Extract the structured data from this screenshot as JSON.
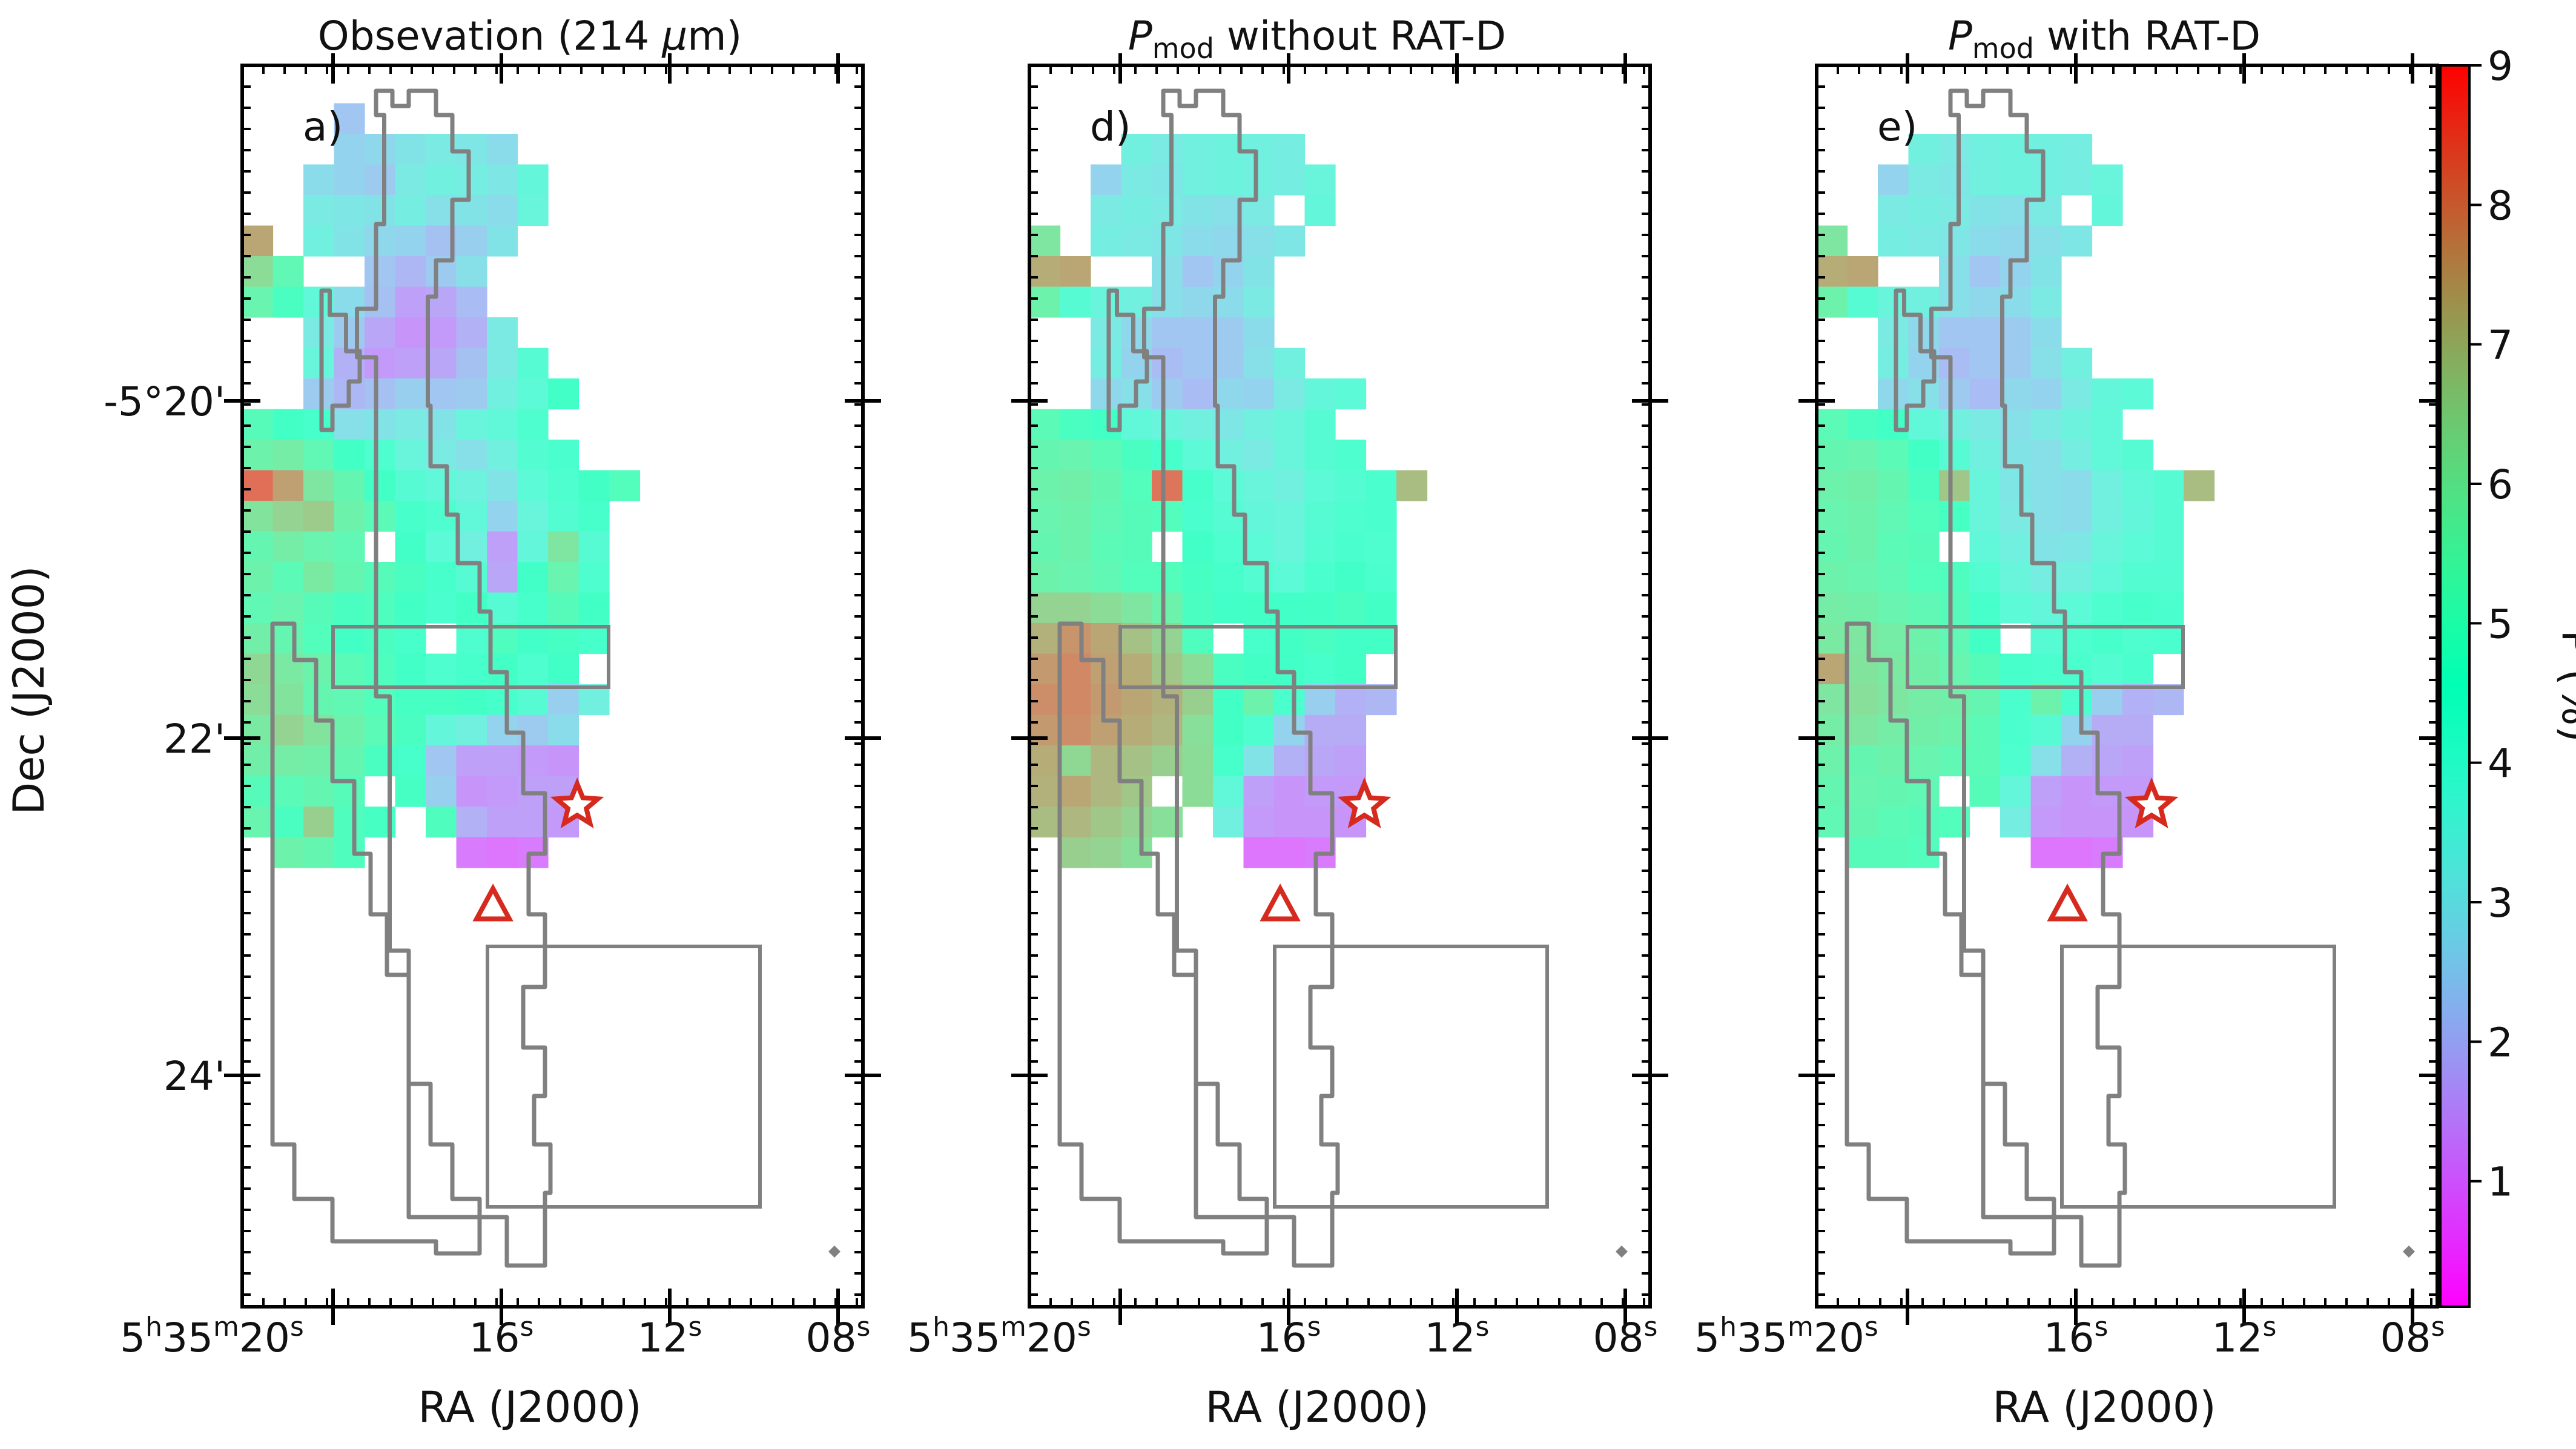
{
  "figure": {
    "ylabel": "Dec (J2000)",
    "xlabel": "RA (J2000)",
    "yticks": [
      {
        "label": "-5°20'",
        "dec_arcmin": -20
      },
      {
        "label": "22'",
        "dec_arcmin": -22
      },
      {
        "label": "24'",
        "dec_arcmin": -24
      }
    ],
    "xticks": [
      {
        "h": "5",
        "m": "35",
        "s": "20",
        "ra_s": 20
      },
      {
        "s": "16",
        "ra_s": 16
      },
      {
        "s": "12",
        "ra_s": 12
      },
      {
        "s": "08",
        "ra_s": 8
      }
    ]
  },
  "chart_data": [
    {
      "type": "heatmap",
      "panel_label": "a)",
      "title_text": "Obsevation (214 ",
      "title_mu": "μ",
      "title_unit": "m)",
      "markers": {
        "star": {
          "ra_s": 14.2,
          "dec_arcmin": -22.4
        },
        "triangle": {
          "ra_s": 16.2,
          "dec_arcmin": -23.0
        }
      },
      "grid": [
        [
          null,
          null,
          null,
          null,
          null,
          null,
          null,
          null,
          null,
          null,
          null,
          null,
          null
        ],
        [
          null,
          null,
          null,
          2.3,
          null,
          null,
          null,
          null,
          null,
          null,
          null,
          null,
          null
        ],
        [
          null,
          null,
          null,
          2.6,
          2.7,
          3.0,
          3.2,
          3.1,
          2.8,
          null,
          null,
          null,
          null
        ],
        [
          null,
          null,
          2.8,
          2.6,
          2.4,
          3.2,
          3.4,
          3.3,
          3.1,
          3.7,
          null,
          null,
          null
        ],
        [
          null,
          null,
          3.2,
          3.1,
          3.0,
          3.3,
          2.9,
          3.0,
          2.8,
          3.6,
          null,
          null,
          null
        ],
        [
          7.4,
          null,
          3.4,
          3.0,
          2.7,
          2.6,
          2.2,
          2.5,
          3.0,
          null,
          null,
          null,
          null
        ],
        [
          6.3,
          5.3,
          null,
          null,
          2.3,
          2.0,
          2.4,
          2.9,
          null,
          null,
          null,
          null,
          null
        ],
        [
          5.5,
          4.8,
          3.8,
          2.8,
          2.2,
          1.6,
          1.7,
          2.1,
          null,
          null,
          null,
          null,
          null
        ],
        [
          null,
          null,
          3.2,
          2.4,
          1.7,
          1.4,
          1.5,
          1.9,
          3.2,
          null,
          null,
          null,
          null
        ],
        [
          null,
          null,
          3.6,
          1.9,
          1.5,
          1.6,
          1.7,
          2.2,
          3.2,
          4.0,
          null,
          null,
          null
        ],
        [
          null,
          null,
          2.4,
          2.0,
          2.2,
          2.5,
          2.3,
          2.4,
          3.4,
          3.9,
          4.5,
          null,
          null
        ],
        [
          5.1,
          4.6,
          4.4,
          2.9,
          3.0,
          3.2,
          3.0,
          3.6,
          3.8,
          4.2,
          null,
          null,
          null
        ],
        [
          5.6,
          5.8,
          5.3,
          4.6,
          4.2,
          3.6,
          3.2,
          2.9,
          3.4,
          4.1,
          4.3,
          null,
          null
        ],
        [
          8.3,
          7.5,
          6.0,
          5.4,
          4.6,
          4.0,
          3.8,
          3.5,
          3.0,
          3.9,
          4.2,
          4.6,
          5.0
        ],
        [
          6.1,
          6.5,
          6.7,
          5.6,
          5.2,
          4.4,
          4.2,
          3.8,
          2.6,
          3.6,
          4.1,
          4.4,
          null
        ],
        [
          5.4,
          5.8,
          5.5,
          5.3,
          null,
          4.5,
          3.9,
          3.4,
          1.6,
          3.7,
          6.0,
          4.0,
          null
        ],
        [
          5.6,
          5.2,
          5.9,
          5.4,
          5.1,
          4.8,
          4.4,
          4.0,
          1.7,
          4.5,
          5.5,
          4.2,
          null
        ],
        [
          5.3,
          5.5,
          5.1,
          4.8,
          4.9,
          4.6,
          4.3,
          4.6,
          4.0,
          4.4,
          5.1,
          4.6,
          null
        ],
        [
          5.7,
          5.4,
          5.0,
          4.6,
          4.8,
          4.4,
          null,
          4.2,
          4.9,
          4.5,
          4.7,
          4.4,
          null
        ],
        [
          6.4,
          5.9,
          5.6,
          5.2,
          4.9,
          4.5,
          4.2,
          4.4,
          4.6,
          4.2,
          4.5,
          null,
          null
        ],
        [
          6.3,
          6.1,
          5.4,
          5.3,
          5.0,
          4.7,
          4.7,
          4.6,
          4.4,
          4.0,
          2.5,
          3.4,
          null
        ],
        [
          5.9,
          6.5,
          6.1,
          5.6,
          5.2,
          4.8,
          3.7,
          3.4,
          2.6,
          2.4,
          2.8,
          null,
          null
        ],
        [
          5.7,
          5.8,
          5.7,
          5.4,
          4.8,
          4.4,
          2.3,
          1.6,
          1.6,
          1.5,
          1.4,
          null,
          null
        ],
        [
          5.1,
          5.2,
          5.4,
          5.1,
          null,
          4.7,
          2.5,
          1.4,
          1.5,
          1.6,
          1.6,
          null,
          null
        ],
        [
          5.5,
          4.8,
          6.6,
          4.9,
          4.7,
          null,
          4.9,
          1.9,
          1.6,
          1.6,
          1.5,
          null,
          null
        ],
        [
          null,
          5.6,
          5.4,
          4.9,
          null,
          null,
          null,
          1.0,
          0.9,
          1.0,
          null,
          null,
          null
        ],
        [
          null,
          null,
          null,
          null,
          null,
          null,
          null,
          null,
          null,
          null,
          null,
          null,
          null
        ]
      ]
    },
    {
      "type": "heatmap",
      "panel_label": "d)",
      "title_main": "P",
      "title_sub": "mod",
      "title_rest": " without RAT-D",
      "markers": {
        "star": {
          "ra_s": 14.2,
          "dec_arcmin": -22.4
        },
        "triangle": {
          "ra_s": 16.2,
          "dec_arcmin": -23.0
        }
      },
      "grid": [
        [
          null,
          null,
          null,
          null,
          null,
          null,
          null,
          null,
          null,
          null,
          null,
          null,
          null
        ],
        [
          null,
          null,
          null,
          null,
          null,
          null,
          null,
          null,
          null,
          null,
          null,
          null,
          null
        ],
        [
          null,
          null,
          null,
          3.4,
          3.2,
          3.4,
          3.5,
          3.4,
          3.3,
          null,
          null,
          null,
          null
        ],
        [
          null,
          null,
          2.6,
          3.2,
          3.1,
          3.4,
          3.5,
          3.4,
          3.3,
          3.6,
          null,
          null,
          null
        ],
        [
          null,
          null,
          3.2,
          3.3,
          3.2,
          3.0,
          2.9,
          3.2,
          null,
          3.7,
          null,
          null,
          null
        ],
        [
          6.0,
          null,
          3.3,
          3.2,
          3.1,
          2.8,
          2.7,
          2.9,
          3.1,
          null,
          null,
          null,
          null
        ],
        [
          7.3,
          7.4,
          null,
          null,
          2.9,
          2.3,
          2.6,
          3.0,
          null,
          null,
          null,
          null,
          null
        ],
        [
          5.6,
          4.0,
          3.6,
          3.4,
          2.9,
          2.7,
          2.8,
          3.2,
          null,
          null,
          null,
          null,
          null
        ],
        [
          null,
          null,
          3.2,
          2.7,
          2.3,
          2.3,
          2.4,
          2.8,
          null,
          null,
          null,
          null,
          null
        ],
        [
          null,
          null,
          3.3,
          2.6,
          2.1,
          2.3,
          2.4,
          2.9,
          3.4,
          null,
          null,
          null,
          null
        ],
        [
          null,
          null,
          2.7,
          2.9,
          2.4,
          2.1,
          2.7,
          2.6,
          3.2,
          3.7,
          3.9,
          null,
          null
        ],
        [
          5.2,
          4.8,
          4.6,
          3.8,
          3.6,
          3.4,
          3.1,
          3.4,
          3.6,
          4.0,
          null,
          null,
          null
        ],
        [
          5.4,
          5.5,
          5.2,
          4.8,
          4.4,
          3.9,
          3.4,
          3.2,
          3.6,
          4.0,
          4.2,
          null,
          null
        ],
        [
          5.6,
          5.7,
          5.4,
          5.0,
          8.2,
          4.4,
          3.9,
          3.6,
          3.4,
          3.9,
          4.1,
          4.3,
          7.0
        ],
        [
          5.5,
          5.6,
          5.3,
          5.1,
          5.0,
          4.3,
          4.0,
          3.7,
          3.6,
          4.0,
          4.2,
          4.3,
          null
        ],
        [
          5.4,
          5.6,
          5.2,
          5.1,
          null,
          4.5,
          4.2,
          3.9,
          3.6,
          4.1,
          4.3,
          4.2,
          null
        ],
        [
          5.6,
          5.5,
          5.3,
          5.0,
          5.0,
          4.7,
          4.4,
          4.1,
          3.9,
          4.3,
          4.5,
          4.3,
          null
        ],
        [
          6.5,
          6.5,
          6.3,
          6.0,
          5.6,
          4.8,
          4.5,
          4.6,
          4.5,
          4.6,
          4.8,
          4.6,
          null
        ],
        [
          7.2,
          7.7,
          7.4,
          6.9,
          6.5,
          4.9,
          null,
          4.4,
          4.6,
          4.8,
          4.5,
          4.6,
          null
        ],
        [
          7.6,
          7.9,
          7.5,
          7.3,
          6.8,
          6.3,
          4.8,
          4.6,
          4.5,
          4.4,
          4.6,
          null,
          null
        ],
        [
          7.8,
          7.9,
          7.6,
          7.4,
          7.2,
          6.6,
          4.6,
          5.6,
          4.3,
          2.5,
          1.9,
          2.0,
          null
        ],
        [
          7.6,
          7.8,
          7.5,
          7.3,
          7.1,
          6.2,
          4.6,
          4.2,
          2.6,
          1.8,
          1.8,
          null,
          null
        ],
        [
          7.3,
          6.4,
          7.1,
          6.9,
          6.6,
          6.3,
          4.4,
          3.0,
          1.9,
          1.7,
          1.6,
          null,
          null
        ],
        [
          7.2,
          7.4,
          7.1,
          6.8,
          null,
          6.3,
          3.8,
          1.6,
          1.4,
          1.5,
          1.5,
          null,
          null
        ],
        [
          7.0,
          7.1,
          6.8,
          6.5,
          6.2,
          null,
          3.4,
          1.5,
          1.4,
          1.4,
          1.4,
          null,
          null
        ],
        [
          null,
          6.6,
          6.5,
          6.2,
          null,
          null,
          null,
          0.9,
          0.9,
          1.0,
          null,
          null,
          null
        ],
        [
          null,
          null,
          null,
          null,
          null,
          null,
          null,
          null,
          null,
          null,
          null,
          null,
          null
        ]
      ]
    },
    {
      "type": "heatmap",
      "panel_label": "e)",
      "title_main": "P",
      "title_sub": "mod",
      "title_rest": " with RAT-D",
      "markers": {
        "star": {
          "ra_s": 14.2,
          "dec_arcmin": -22.4
        },
        "triangle": {
          "ra_s": 16.2,
          "dec_arcmin": -23.0
        }
      },
      "grid": [
        [
          null,
          null,
          null,
          null,
          null,
          null,
          null,
          null,
          null,
          null,
          null,
          null,
          null
        ],
        [
          null,
          null,
          null,
          null,
          null,
          null,
          null,
          null,
          null,
          null,
          null,
          null,
          null
        ],
        [
          null,
          null,
          null,
          3.4,
          3.2,
          3.4,
          3.5,
          3.4,
          3.3,
          null,
          null,
          null,
          null
        ],
        [
          null,
          null,
          2.6,
          3.2,
          3.1,
          3.4,
          3.5,
          3.4,
          3.3,
          3.6,
          null,
          null,
          null
        ],
        [
          null,
          null,
          3.2,
          3.3,
          3.2,
          3.0,
          2.9,
          3.2,
          null,
          3.7,
          null,
          null,
          null
        ],
        [
          6.0,
          null,
          3.3,
          3.2,
          3.1,
          2.8,
          2.7,
          2.9,
          3.1,
          null,
          null,
          null,
          null
        ],
        [
          7.3,
          7.4,
          null,
          null,
          2.9,
          2.3,
          2.6,
          3.0,
          null,
          null,
          null,
          null,
          null
        ],
        [
          5.6,
          4.0,
          3.6,
          3.4,
          2.9,
          2.7,
          2.8,
          3.2,
          null,
          null,
          null,
          null,
          null
        ],
        [
          null,
          null,
          3.2,
          2.7,
          2.3,
          2.3,
          2.4,
          2.8,
          null,
          null,
          null,
          null,
          null
        ],
        [
          null,
          null,
          3.3,
          2.6,
          2.1,
          2.3,
          2.4,
          2.9,
          3.4,
          null,
          null,
          null,
          null
        ],
        [
          null,
          null,
          2.7,
          2.9,
          2.4,
          2.1,
          2.7,
          2.6,
          3.2,
          3.7,
          3.9,
          null,
          null
        ],
        [
          5.2,
          4.8,
          4.6,
          3.8,
          3.4,
          3.2,
          2.9,
          3.2,
          3.5,
          3.8,
          null,
          null,
          null
        ],
        [
          5.4,
          5.5,
          5.2,
          4.6,
          4.0,
          3.4,
          3.0,
          2.9,
          3.3,
          3.8,
          4.0,
          null,
          null
        ],
        [
          5.6,
          5.7,
          5.4,
          4.8,
          6.8,
          3.6,
          3.1,
          2.9,
          2.8,
          3.4,
          3.8,
          4.0,
          7.0
        ],
        [
          5.5,
          5.6,
          5.3,
          5.0,
          4.7,
          3.6,
          3.2,
          2.9,
          2.8,
          3.4,
          3.7,
          4.0,
          null
        ],
        [
          5.4,
          5.6,
          5.2,
          5.1,
          null,
          3.8,
          3.4,
          3.0,
          3.1,
          3.6,
          3.9,
          4.0,
          null
        ],
        [
          5.6,
          5.5,
          5.3,
          5.0,
          4.9,
          4.1,
          3.6,
          3.3,
          3.4,
          3.8,
          4.1,
          4.1,
          null
        ],
        [
          5.8,
          5.7,
          5.5,
          5.3,
          5.1,
          4.4,
          3.9,
          3.7,
          3.9,
          4.2,
          4.4,
          4.3,
          null
        ],
        [
          5.9,
          6.0,
          5.8,
          5.6,
          5.3,
          4.6,
          null,
          4.0,
          4.2,
          4.4,
          4.2,
          4.3,
          null
        ],
        [
          7.4,
          6.1,
          5.9,
          5.7,
          5.5,
          5.1,
          4.4,
          4.3,
          4.3,
          4.1,
          4.3,
          null,
          null
        ],
        [
          6.0,
          6.2,
          6.0,
          5.8,
          5.7,
          5.4,
          4.3,
          5.6,
          4.3,
          2.5,
          1.9,
          2.0,
          null
        ],
        [
          5.8,
          6.0,
          5.8,
          5.7,
          5.6,
          5.2,
          4.3,
          4.0,
          2.6,
          1.8,
          1.8,
          null,
          null
        ],
        [
          5.6,
          5.4,
          5.6,
          5.5,
          5.3,
          5.2,
          4.2,
          2.9,
          1.9,
          1.7,
          1.6,
          null,
          null
        ],
        [
          5.4,
          5.5,
          5.4,
          5.3,
          null,
          5.1,
          3.7,
          1.6,
          1.4,
          1.5,
          1.5,
          null,
          null
        ],
        [
          5.3,
          5.4,
          5.2,
          5.1,
          5.0,
          null,
          3.3,
          1.5,
          1.4,
          1.4,
          1.4,
          null,
          null
        ],
        [
          null,
          5.1,
          5.1,
          5.0,
          null,
          null,
          null,
          0.9,
          0.9,
          1.0,
          null,
          null,
          null
        ],
        [
          null,
          null,
          null,
          null,
          null,
          null,
          null,
          null,
          null,
          null,
          null,
          null,
          null
        ]
      ]
    }
  ],
  "colorbar": {
    "label": "P (%)",
    "min": 0.1,
    "max": 9,
    "ticks": [
      "1",
      "2",
      "3",
      "4",
      "5",
      "6",
      "7",
      "8",
      "9"
    ],
    "colormap": "rainbow"
  },
  "colors": {
    "contour": "#808080",
    "marker_edge": "#d62a1e",
    "marker_fill": "#ffffff",
    "axes": "#000000"
  }
}
